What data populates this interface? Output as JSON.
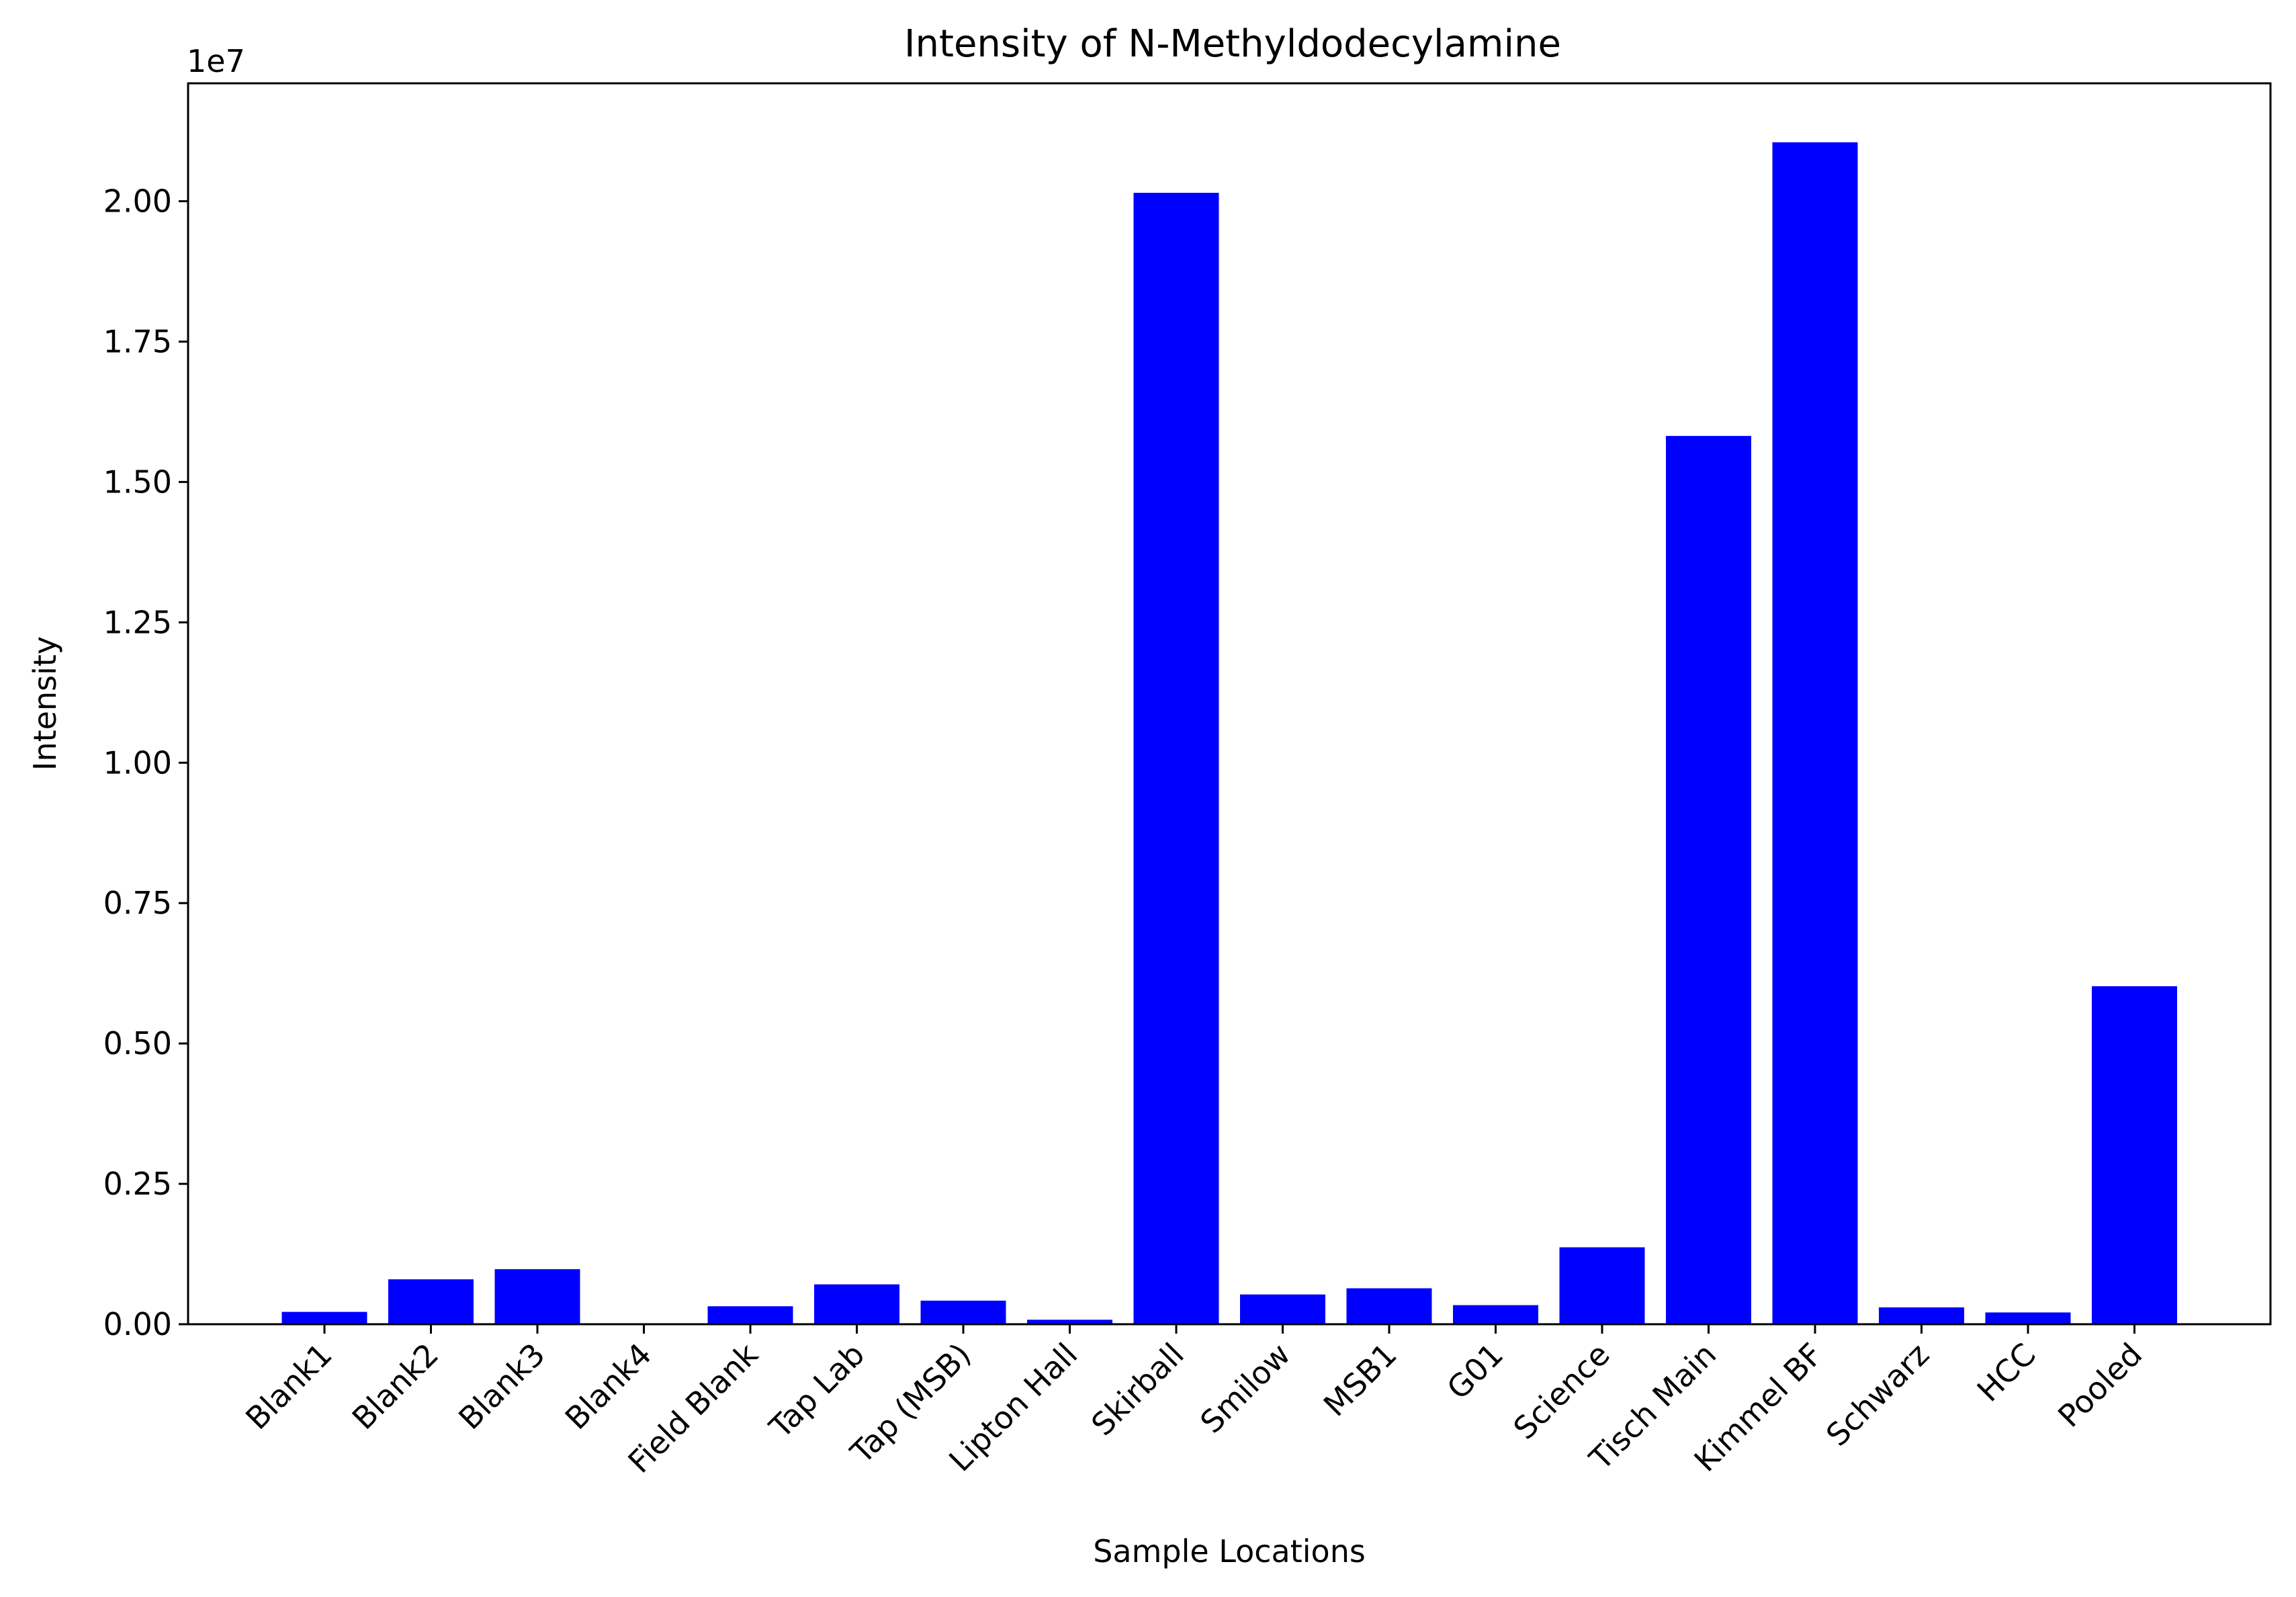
{
  "chart_data": {
    "type": "bar",
    "title": "Intensity of N-Methyldodecylamine",
    "xlabel": "Sample Locations",
    "ylabel": "Intensity",
    "y_offset_label": "1e7",
    "y_scale_factor": 10000000,
    "ylim": [
      0,
      22100000
    ],
    "yticks": [
      0,
      2500000,
      5000000,
      7500000,
      10000000,
      12500000,
      15000000,
      17500000,
      20000000
    ],
    "ytick_labels": [
      "0.00",
      "0.25",
      "0.50",
      "0.75",
      "1.00",
      "1.25",
      "1.50",
      "1.75",
      "2.00"
    ],
    "bar_color": "#0000ff",
    "grid": false,
    "legend": "none",
    "categories": [
      "Blank1",
      "Blank2",
      "Blank3",
      "Blank4",
      "Field Blank",
      "Tap Lab",
      "Tap (MSB)",
      "Lipton Hall",
      "Skirball",
      "Smilow",
      "MSB1",
      "G01",
      "Science",
      "Tisch Main",
      "Kimmel BF",
      "Schwarz",
      "HCC",
      "Pooled"
    ],
    "values": [
      220000,
      800000,
      980000,
      0,
      320000,
      710000,
      420000,
      80000,
      20150000,
      530000,
      640000,
      340000,
      1370000,
      15820000,
      21050000,
      300000,
      210000,
      6020000
    ]
  }
}
